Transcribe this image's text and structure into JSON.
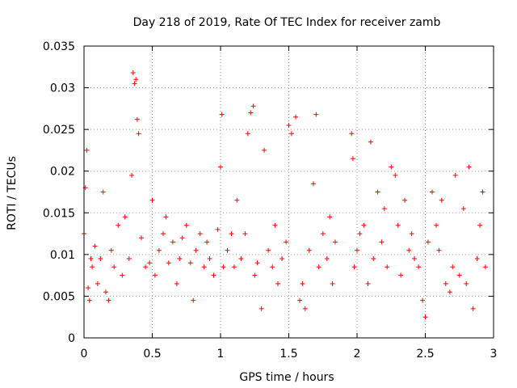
{
  "chart_data": {
    "type": "scatter",
    "title": "Day 218 of 2019, Rate Of TEC Index for receiver zamb",
    "xlabel": "GPS time / hours",
    "ylabel": "ROTI / TECUs",
    "xlim": [
      0,
      3
    ],
    "ylim": [
      0,
      0.035
    ],
    "xticks": [
      0,
      0.5,
      1,
      1.5,
      2,
      2.5,
      3
    ],
    "xtick_labels": [
      "0",
      "0.5",
      "1",
      "1.5",
      "2",
      "2.5",
      "3"
    ],
    "yticks": [
      0,
      0.005,
      0.01,
      0.015,
      0.02,
      0.025,
      0.03,
      0.035
    ],
    "ytick_labels": [
      "0",
      "0.005",
      "0.01",
      "0.015",
      "0.02",
      "0.025",
      "0.03",
      "0.035"
    ],
    "grid": true,
    "marker": "+",
    "color": "#ff0000",
    "data_gap": [
      1.85,
      1.95
    ],
    "series": [
      {
        "name": "ROTI",
        "x": [
          0.0,
          0.01,
          0.02,
          0.03,
          0.04,
          0.05,
          0.06,
          0.08,
          0.1,
          0.12,
          0.14,
          0.16,
          0.18,
          0.2,
          0.22,
          0.25,
          0.28,
          0.3,
          0.33,
          0.35,
          0.36,
          0.37,
          0.38,
          0.39,
          0.4,
          0.42,
          0.45,
          0.48,
          0.5,
          0.52,
          0.55,
          0.58,
          0.6,
          0.62,
          0.65,
          0.68,
          0.7,
          0.72,
          0.75,
          0.78,
          0.8,
          0.82,
          0.85,
          0.88,
          0.9,
          0.92,
          0.95,
          0.98,
          1.0,
          1.01,
          1.02,
          1.05,
          1.08,
          1.1,
          1.12,
          1.15,
          1.18,
          1.2,
          1.22,
          1.24,
          1.25,
          1.27,
          1.3,
          1.32,
          1.35,
          1.38,
          1.4,
          1.42,
          1.45,
          1.48,
          1.5,
          1.52,
          1.55,
          1.58,
          1.6,
          1.62,
          1.65,
          1.68,
          1.7,
          1.72,
          1.75,
          1.78,
          1.8,
          1.82,
          1.84,
          1.96,
          1.97,
          1.98,
          2.0,
          2.02,
          2.05,
          2.08,
          2.1,
          2.12,
          2.15,
          2.18,
          2.2,
          2.22,
          2.25,
          2.28,
          2.3,
          2.32,
          2.35,
          2.38,
          2.4,
          2.42,
          2.45,
          2.48,
          2.5,
          2.52,
          2.55,
          2.58,
          2.6,
          2.62,
          2.65,
          2.68,
          2.7,
          2.72,
          2.75,
          2.78,
          2.8,
          2.82,
          2.85,
          2.88,
          2.9,
          2.92,
          2.94
        ],
        "y": [
          0.0125,
          0.018,
          0.0225,
          0.006,
          0.0045,
          0.0095,
          0.0085,
          0.011,
          0.0065,
          0.0095,
          0.0175,
          0.0055,
          0.0045,
          0.0105,
          0.0085,
          0.0135,
          0.0075,
          0.0145,
          0.0095,
          0.0195,
          0.0318,
          0.0305,
          0.031,
          0.0262,
          0.0245,
          0.012,
          0.0085,
          0.009,
          0.0165,
          0.0075,
          0.0105,
          0.0125,
          0.0145,
          0.009,
          0.0115,
          0.0065,
          0.0095,
          0.012,
          0.0135,
          0.009,
          0.0045,
          0.0105,
          0.0125,
          0.0085,
          0.0115,
          0.0095,
          0.0075,
          0.013,
          0.0205,
          0.0268,
          0.0085,
          0.0105,
          0.0125,
          0.0085,
          0.0165,
          0.0095,
          0.0125,
          0.0245,
          0.027,
          0.0278,
          0.0075,
          0.009,
          0.0035,
          0.0225,
          0.0105,
          0.0085,
          0.0135,
          0.0065,
          0.0095,
          0.0115,
          0.0255,
          0.0245,
          0.0265,
          0.0045,
          0.0065,
          0.0035,
          0.0105,
          0.0185,
          0.0268,
          0.0085,
          0.0125,
          0.0095,
          0.0145,
          0.0065,
          0.0115,
          0.0245,
          0.0215,
          0.0085,
          0.0105,
          0.0125,
          0.0135,
          0.0065,
          0.0235,
          0.0095,
          0.0175,
          0.0115,
          0.0155,
          0.0085,
          0.0205,
          0.0195,
          0.0135,
          0.0075,
          0.0165,
          0.0105,
          0.0125,
          0.0095,
          0.0085,
          0.0045,
          0.0025,
          0.0115,
          0.0175,
          0.0135,
          0.0105,
          0.0165,
          0.0065,
          0.0055,
          0.0085,
          0.0195,
          0.0075,
          0.0155,
          0.0065,
          0.0205,
          0.0035,
          0.0095,
          0.0135,
          0.0175,
          0.0085
        ]
      }
    ]
  }
}
